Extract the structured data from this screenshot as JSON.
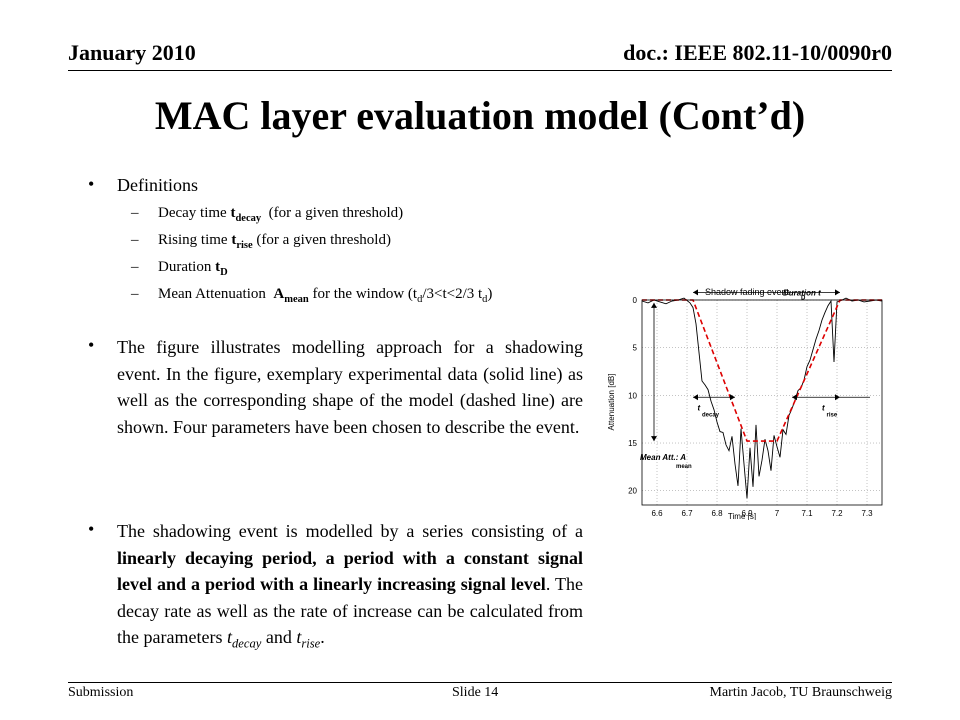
{
  "header": {
    "date": "January 2010",
    "doc": "doc.: IEEE 802.11-10/0090r0"
  },
  "title": "MAC layer evaluation model (Cont’d)",
  "definitions": {
    "heading": "Definitions",
    "items": [
      {
        "pre": "Decay time ",
        "bold": "t",
        "sub": "decay",
        "post": "  (for a given threshold)"
      },
      {
        "pre": "Rising time ",
        "bold": "t",
        "sub": "rise",
        "post": " (for a given threshold)"
      },
      {
        "pre": "Duration ",
        "bold": "t",
        "sub": "D",
        "post": ""
      },
      {
        "pre": "Mean Attenuation  ",
        "bold": "A",
        "sub": "mean",
        "post": " for the window (t",
        "sub2": "d",
        "post2": "/3<t<2/3 t",
        "sub3": "d",
        "post3": ")"
      }
    ]
  },
  "para1": "The figure illustrates modelling approach for a shadowing event. In the figure, exemplary experimental data (solid line) as well as the corresponding shape of the model (dashed line) are shown. Four parameters have been chosen to describe the event.",
  "para2": {
    "p1": "The shadowing event is modelled by a series consisting of a ",
    "bold": "linearly decaying period, a period with a constant signal level and a period with a linearly increasing signal level",
    "p2": ". The decay rate as well as the rate of increase can be calculated from the parameters ",
    "t1": "t",
    "s1": "decay",
    "and": " and ",
    "t2": "t",
    "s2": "rise",
    "end": "."
  },
  "footer": {
    "left": "Submission",
    "center": "Slide 14",
    "right": "Martin Jacob, TU Braunschweig"
  },
  "chart_data": {
    "type": "line",
    "title": "Shadow fading event",
    "xlabel": "Time [s]",
    "ylabel": "Attenuation [dB]",
    "xlim": [
      6.55,
      7.35
    ],
    "ylim": [
      0,
      21.5
    ],
    "y_inverted": true,
    "x_ticks": [
      "6.6",
      "6.7",
      "6.8",
      "6.9",
      "7",
      "7.1",
      "7.2",
      "7.3"
    ],
    "y_ticks": [
      "0",
      "5",
      "10",
      "15",
      "20"
    ],
    "grid": true,
    "annotations": [
      "Duration t",
      "D",
      "t",
      "decay",
      "t",
      "rise",
      "Mean Att.: A",
      "mean"
    ],
    "colors": {
      "measured": "#000000",
      "model": "#dd0000"
    },
    "series": [
      {
        "x": [
          6.55,
          6.57,
          6.59,
          6.61,
          6.63,
          6.65,
          6.67,
          6.69,
          6.71,
          6.72,
          6.73,
          6.74,
          6.75,
          6.76,
          6.77,
          6.78,
          6.79,
          6.8,
          6.81,
          6.82,
          6.83,
          6.84,
          6.85,
          6.86,
          6.87,
          6.88,
          6.89,
          6.9,
          6.91,
          6.92,
          6.93,
          6.94,
          6.95,
          6.96,
          6.97,
          6.98,
          6.99,
          7.0,
          7.01,
          7.02,
          7.03,
          7.04,
          7.05,
          7.06,
          7.07,
          7.08,
          7.09,
          7.1,
          7.11,
          7.12,
          7.13,
          7.14,
          7.15,
          7.16,
          7.17,
          7.18,
          7.19,
          7.2,
          7.21,
          7.23,
          7.25,
          7.27,
          7.29,
          7.31,
          7.33,
          7.35
        ],
        "values": [
          0.1,
          0.3,
          0,
          0.2,
          0.4,
          0.1,
          0,
          -0.2,
          0.3,
          0.8,
          2.5,
          5.5,
          8.5,
          8.9,
          9.4,
          10.6,
          11.5,
          12.8,
          13.8,
          13.9,
          15.2,
          15.8,
          14.3,
          17.2,
          19.5,
          13.5,
          17.2,
          20.8,
          15.5,
          19.6,
          13.1,
          18.5,
          16.8,
          14.6,
          15.8,
          17.9,
          14.2,
          15.4,
          16.5,
          13.6,
          14.1,
          12.1,
          11.4,
          10.5,
          9.5,
          9.2,
          8.4,
          7.0,
          6.3,
          5.2,
          4.1,
          3.2,
          2.1,
          1.3,
          0.6,
          0.1,
          6.5,
          0.2,
          0.1,
          -0.2,
          0.1,
          0,
          0.2,
          0.1,
          0,
          0.1
        ]
      },
      {
        "x": [
          6.55,
          6.72,
          6.9,
          7.0,
          7.21,
          7.35
        ],
        "values": [
          0,
          0,
          14.8,
          14.8,
          0,
          0
        ]
      }
    ]
  }
}
